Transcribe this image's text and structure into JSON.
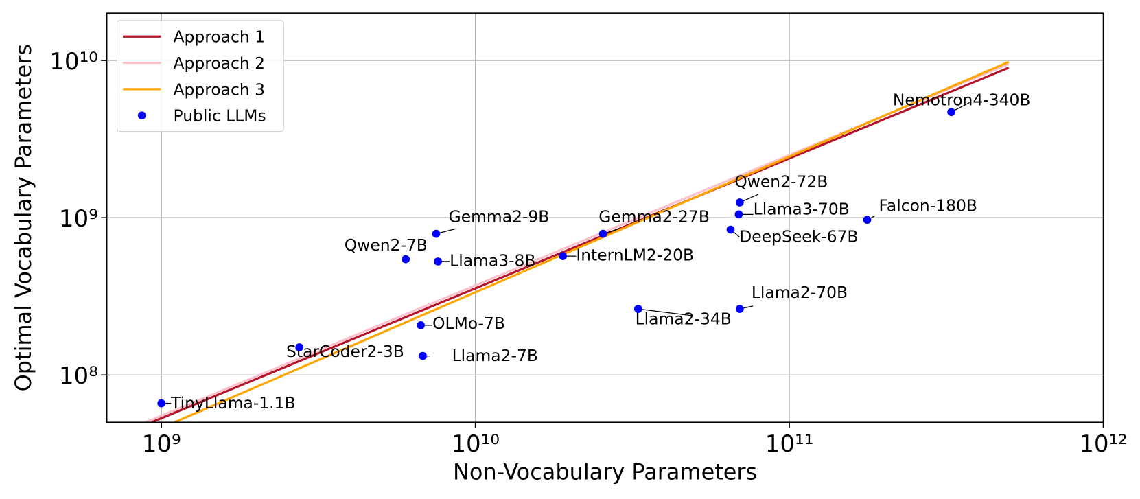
{
  "chart_data": {
    "type": "line",
    "xlabel": "Non-Vocabulary Parameters",
    "ylabel": "Optimal Vocabulary Parameters",
    "xscale": "log",
    "yscale": "log",
    "xlim": [
      670000000,
      1000000000000
    ],
    "ylim": [
      50000000,
      20000000000
    ],
    "xticks": [
      {
        "value": 1000000000,
        "label": "10⁹"
      },
      {
        "value": 10000000000,
        "label": "10¹⁰"
      },
      {
        "value": 100000000000,
        "label": "10¹¹"
      },
      {
        "value": 1000000000000,
        "label": "10¹²"
      }
    ],
    "yticks": [
      {
        "value": 100000000,
        "label": "10⁸"
      },
      {
        "value": 1000000000,
        "label": "10⁹"
      },
      {
        "value": 10000000000,
        "label": "10¹⁰"
      }
    ],
    "grid": true,
    "legend": "upper left",
    "series": [
      {
        "name": "Approach 1",
        "type": "line",
        "color": "#b5152b",
        "x": [
          930000000,
          500000000000
        ],
        "values": [
          50000000,
          9000000000
        ]
      },
      {
        "name": "Approach 2",
        "type": "line",
        "color": "#ffc0cb",
        "x": [
          890000000,
          500000000000
        ],
        "values": [
          50000000,
          9500000000
        ]
      },
      {
        "name": "Approach 3",
        "type": "line",
        "color": "#ffa500",
        "x": [
          1100000000,
          500000000000
        ],
        "values": [
          50000000,
          9800000000
        ]
      },
      {
        "name": "Public LLMs",
        "type": "scatter",
        "color": "#0000ff",
        "labels": [
          "TinyLlama-1.1B",
          "StarCoder2-3B",
          "Llama2-7B",
          "OLMo-7B",
          "Qwen2-7B",
          "Llama3-8B",
          "Gemma2-9B",
          "InternLM2-20B",
          "Gemma2-27B",
          "Llama2-34B",
          "Llama2-70B",
          "DeepSeek-67B",
          "Llama3-70B",
          "Qwen2-72B",
          "Falcon-180B",
          "Nemotron4-340B"
        ],
        "x": [
          1000000000,
          2750000000,
          6800000000,
          6700000000,
          6000000000,
          7600000000,
          7500000000,
          19000000000,
          25500000000,
          33000000000,
          69500000000,
          65000000000,
          69000000000,
          69500000000,
          177000000000,
          328000000000
        ],
        "values": [
          66000000,
          150000000,
          132000000,
          207000000,
          545000000,
          527000000,
          790000000,
          570000000,
          790000000,
          263000000,
          263000000,
          840000000,
          1050000000,
          1250000000,
          970000000,
          4700000000
        ]
      }
    ]
  }
}
